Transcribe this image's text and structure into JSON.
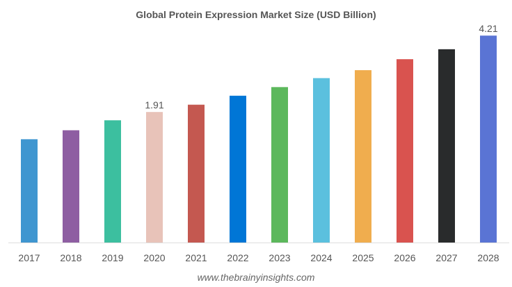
{
  "chart_data": {
    "type": "bar",
    "title": "Global Protein Expression Market Size (USD Billion)",
    "xlabel": "",
    "ylabel": "",
    "categories": [
      "2017",
      "2018",
      "2019",
      "2020",
      "2021",
      "2022",
      "2023",
      "2024",
      "2025",
      "2026",
      "2027",
      "2028"
    ],
    "values": [
      1.09,
      1.36,
      1.66,
      1.91,
      2.13,
      2.4,
      2.66,
      2.93,
      3.17,
      3.5,
      3.8,
      4.21
    ],
    "data_labels": {
      "3": "1.91",
      "11": "4.21"
    },
    "colors": [
      "#3f96d0",
      "#8e5ea2",
      "#3cbf9f",
      "#e8c3b9",
      "#c45850",
      "#0076d6",
      "#5cb85c",
      "#5bc0de",
      "#f0ad4e",
      "#d9534f",
      "#292b2c",
      "#5a74d4"
    ],
    "ylim": [
      -2.02,
      4.55
    ],
    "grid": false,
    "legend": "none"
  },
  "footer": {
    "source": "www.thebrainyinsights.com"
  }
}
